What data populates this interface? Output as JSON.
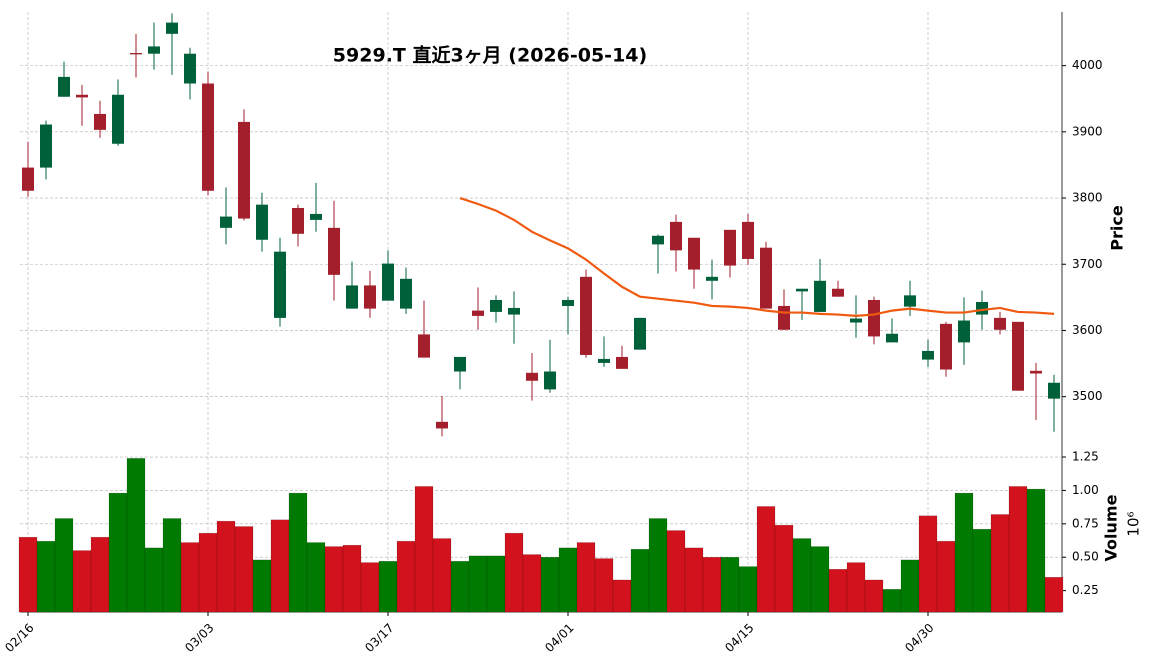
{
  "chart_data": {
    "type": "candlestick",
    "title": "5929.T  直近3ヶ月  (2026-05-14)",
    "categories": [
      "02/16",
      null,
      null,
      null,
      null,
      null,
      null,
      null,
      null,
      null,
      "03/03",
      null,
      null,
      null,
      null,
      null,
      null,
      null,
      null,
      null,
      "03/17",
      null,
      null,
      null,
      null,
      null,
      null,
      null,
      null,
      null,
      "04/01",
      null,
      null,
      null,
      null,
      null,
      null,
      null,
      null,
      null,
      "04/15",
      null,
      null,
      null,
      null,
      null,
      null,
      null,
      null,
      null,
      "04/30",
      null,
      null,
      null,
      null,
      null,
      null,
      null
    ],
    "open": [
      3846,
      3846,
      3953,
      3956,
      3927,
      3882,
      4019,
      4018,
      4048,
      3973,
      3973,
      3755,
      3915,
      3737,
      3619,
      3785,
      3767,
      3755,
      3633,
      3668,
      3645,
      3633,
      3594,
      3462,
      3538,
      3630,
      3628,
      3624,
      3536,
      3511,
      3637,
      3681,
      3551,
      3560,
      3571,
      3730,
      3764,
      3740,
      3675,
      3752,
      3764,
      3725,
      3637,
      3659,
      3628,
      3663,
      3612,
      3646,
      3582,
      3636,
      3556,
      3610,
      3582,
      3624,
      3619,
      3613,
      3539,
      3497
    ],
    "high": [
      3885,
      3917,
      4006,
      3971,
      3947,
      3979,
      4048,
      4065,
      4079,
      4027,
      3991,
      3816,
      3934,
      3808,
      3740,
      3790,
      3823,
      3796,
      3704,
      3690,
      3721,
      3695,
      3645,
      3501,
      3560,
      3665,
      3653,
      3659,
      3566,
      3586,
      3651,
      3692,
      3591,
      3577,
      3619,
      3745,
      3775,
      3740,
      3707,
      3752,
      3776,
      3734,
      3662,
      3663,
      3708,
      3675,
      3653,
      3651,
      3618,
      3675,
      3586,
      3613,
      3650,
      3660,
      3628,
      3613,
      3551,
      3533
    ],
    "low": [
      3802,
      3828,
      3953,
      3909,
      3891,
      3879,
      3982,
      3994,
      3986,
      3949,
      3804,
      3730,
      3766,
      3719,
      3606,
      3727,
      3749,
      3645,
      3633,
      3619,
      3645,
      3625,
      3559,
      3440,
      3511,
      3601,
      3612,
      3580,
      3494,
      3506,
      3594,
      3559,
      3545,
      3542,
      3571,
      3686,
      3689,
      3663,
      3647,
      3680,
      3699,
      3633,
      3601,
      3616,
      3628,
      3651,
      3589,
      3579,
      3582,
      3622,
      3545,
      3530,
      3548,
      3601,
      3594,
      3509,
      3465,
      3447
    ],
    "close": [
      3811,
      3911,
      3983,
      3952,
      3903,
      3956,
      4017,
      4029,
      4065,
      4018,
      3811,
      3772,
      3769,
      3790,
      3719,
      3746,
      3776,
      3684,
      3668,
      3633,
      3701,
      3678,
      3559,
      3452,
      3560,
      3622,
      3646,
      3634,
      3524,
      3538,
      3646,
      3563,
      3557,
      3542,
      3619,
      3743,
      3721,
      3692,
      3681,
      3698,
      3708,
      3633,
      3601,
      3663,
      3675,
      3651,
      3618,
      3591,
      3595,
      3653,
      3569,
      3541,
      3615,
      3643,
      3601,
      3509,
      3535,
      3521
    ],
    "up_color": "#00603a",
    "down_color": "#a31f2b",
    "ylim": [
      3427,
      4081
    ],
    "yticks": [
      3500,
      3600,
      3700,
      3800,
      3900,
      4000
    ],
    "ylabel": "Price",
    "grid": true,
    "ma": {
      "color": "#f05a10",
      "values": [
        null,
        null,
        null,
        null,
        null,
        null,
        null,
        null,
        null,
        null,
        null,
        null,
        null,
        null,
        null,
        null,
        null,
        null,
        null,
        null,
        null,
        null,
        null,
        null,
        3800,
        3791,
        3781,
        3767,
        3749,
        3736,
        3724,
        3707,
        3686,
        3666,
        3651,
        3648,
        3645,
        3642,
        3637,
        3636,
        3634,
        3630,
        3627,
        3627,
        3625,
        3624,
        3622,
        3624,
        3630,
        3633,
        3630,
        3627,
        3627,
        3631,
        3634,
        3628,
        3627,
        3625
      ]
    },
    "volume": {
      "values": [
        0.65,
        0.62,
        0.79,
        0.55,
        0.65,
        0.98,
        1.24,
        0.57,
        0.79,
        0.61,
        0.68,
        0.77,
        0.73,
        0.48,
        0.78,
        0.98,
        0.61,
        0.58,
        0.59,
        0.46,
        0.47,
        0.62,
        1.03,
        0.64,
        0.47,
        0.51,
        0.51,
        0.68,
        0.52,
        0.5,
        0.57,
        0.61,
        0.49,
        0.33,
        0.56,
        0.79,
        0.7,
        0.57,
        0.5,
        0.5,
        0.43,
        0.88,
        0.74,
        0.64,
        0.58,
        0.41,
        0.46,
        0.33,
        0.26,
        0.48,
        0.81,
        0.62,
        0.98,
        0.71,
        0.82,
        1.03,
        1.01,
        0.35
      ],
      "up_color": "#007a00",
      "down_color": "#d2121c",
      "ylim": [
        0.09,
        1.34
      ],
      "yticks": [
        0.25,
        {
          "value": 0.5,
          "label": "0.50"
        },
        0.75,
        {
          "value": 1.0,
          "label": "1.00"
        },
        1.25
      ],
      "ylabel": "Volume",
      "offset_label": "10⁶"
    }
  }
}
